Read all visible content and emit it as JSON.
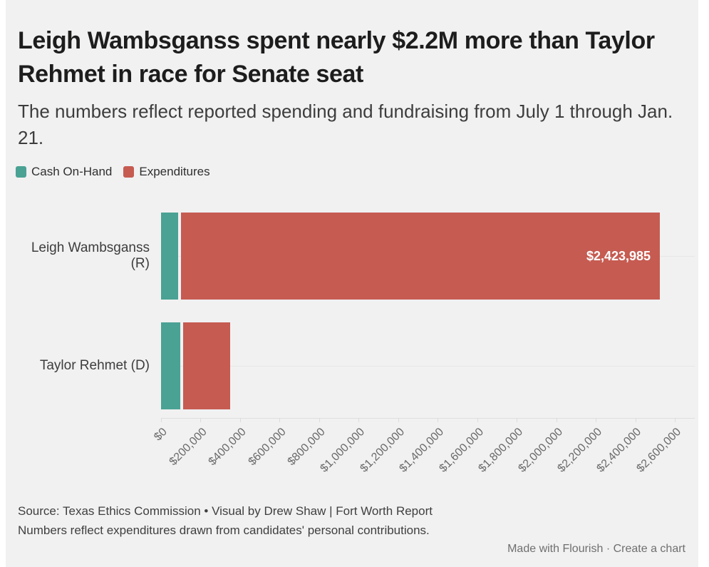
{
  "header": {
    "title": "Leigh Wambsganss spent nearly $2.2M more than Taylor Rehmet in race for Senate seat",
    "subtitle": "The numbers reflect reported spending and fundraising from July 1 through Jan. 21."
  },
  "chart_data": {
    "type": "bar",
    "orientation": "horizontal",
    "stacked": true,
    "grid": "row-lines",
    "legend_position": "top-left",
    "categories": [
      "Leigh Wambsganss (R)",
      "Taylor Rehmet (D)"
    ],
    "series": [
      {
        "name": "Cash On-Hand",
        "color": "#4aa294",
        "values": [
          86000,
          97000
        ],
        "labels": [
          "",
          ""
        ]
      },
      {
        "name": "Expenditures",
        "color": "#c65b51",
        "values": [
          2423985,
          240000
        ],
        "labels": [
          "$2,423,985",
          ""
        ]
      }
    ],
    "x_axis": {
      "min": 0,
      "max": 2600000,
      "ticks": [
        "$0",
        "$200,000",
        "$400,000",
        "$600,000",
        "$800,000",
        "$1,000,000",
        "$1,200,000",
        "$1,400,000",
        "$1,600,000",
        "$1,800,000",
        "$2,000,000",
        "$2,200,000",
        "$2,400,000",
        "$2,600,000"
      ]
    }
  },
  "footer": {
    "source": "Source: Texas Ethics Commission • Visual by Drew Shaw | Fort Worth Report",
    "note": "Numbers reflect expenditures drawn from candidates' personal contributions.",
    "credit": {
      "made_with": "Made with Flourish",
      "separator": "·",
      "create": "Create a chart"
    }
  }
}
